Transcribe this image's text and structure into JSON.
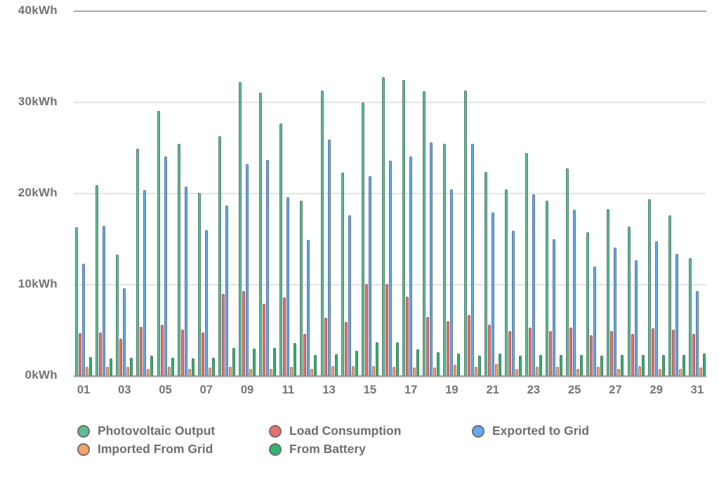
{
  "chart_data": {
    "type": "bar",
    "title": "",
    "unit": "kWh",
    "grid": "horizontal",
    "legend_position": "bottom",
    "ylim": [
      0,
      40
    ],
    "y_tick_labels": [
      "0kWh",
      "10kWh",
      "20kWh",
      "30kWh",
      "40kWh"
    ],
    "x_tick_labels": [
      "01",
      "03",
      "05",
      "07",
      "09",
      "11",
      "13",
      "15",
      "17",
      "19",
      "21",
      "23",
      "25",
      "27",
      "29",
      "31"
    ],
    "categories": [
      "01",
      "02",
      "03",
      "04",
      "05",
      "06",
      "07",
      "08",
      "09",
      "10",
      "11",
      "12",
      "13",
      "14",
      "15",
      "16",
      "17",
      "18",
      "19",
      "20",
      "21",
      "22",
      "23",
      "24",
      "25",
      "26",
      "27",
      "28",
      "29",
      "30",
      "31"
    ],
    "series": [
      {
        "name": "Photovoltaic Output",
        "color": "#5cbd95",
        "values": [
          16.3,
          20.9,
          13.3,
          24.9,
          29.1,
          25.5,
          20.1,
          26.3,
          32.2,
          31.1,
          27.7,
          19.2,
          31.3,
          22.3,
          30.0,
          32.8,
          32.5,
          31.2,
          25.5,
          31.3,
          22.4,
          20.5,
          24.5,
          19.2,
          22.8,
          15.8,
          18.3,
          16.4,
          19.4,
          17.6,
          12.9
        ]
      },
      {
        "name": "Load Consumption",
        "color": "#ea6f6f",
        "values": [
          4.7,
          4.8,
          4.1,
          5.4,
          5.6,
          5.1,
          4.8,
          9.0,
          9.3,
          7.9,
          8.6,
          4.6,
          6.4,
          5.9,
          10.1,
          10.1,
          8.7,
          6.5,
          6.0,
          6.7,
          5.6,
          4.9,
          5.3,
          4.9,
          5.3,
          4.5,
          4.9,
          4.6,
          5.2,
          5.1,
          4.6
        ]
      },
      {
        "name": "Exported to Grid",
        "color": "#63a8f1",
        "values": [
          12.3,
          16.5,
          9.6,
          20.4,
          24.1,
          20.8,
          16.0,
          18.7,
          23.2,
          23.7,
          19.6,
          14.9,
          25.9,
          17.6,
          21.9,
          23.6,
          24.1,
          25.6,
          20.5,
          25.5,
          17.9,
          15.9,
          19.9,
          15.0,
          18.2,
          12.0,
          14.1,
          12.7,
          14.8,
          13.4,
          9.3
        ]
      },
      {
        "name": "Imported From Grid",
        "color": "#f8a268",
        "values": [
          1.0,
          1.0,
          1.0,
          0.8,
          1.0,
          0.8,
          0.9,
          1.0,
          0.8,
          0.8,
          1.0,
          0.8,
          1.1,
          1.1,
          1.1,
          1.0,
          0.9,
          0.9,
          1.2,
          1.0,
          1.3,
          0.8,
          1.0,
          1.0,
          0.8,
          1.0,
          0.8,
          1.1,
          0.8,
          0.8,
          0.9
        ]
      },
      {
        "name": "From Battery",
        "color": "#2fb46f",
        "values": [
          2.1,
          1.9,
          2.0,
          2.2,
          2.0,
          1.9,
          2.0,
          3.1,
          3.0,
          3.1,
          3.6,
          2.3,
          2.4,
          2.8,
          3.7,
          3.7,
          2.9,
          2.6,
          2.5,
          2.2,
          2.5,
          2.2,
          2.3,
          2.3,
          2.3,
          2.2,
          2.3,
          2.3,
          2.3,
          2.3,
          2.5
        ]
      }
    ]
  },
  "legend": {
    "items": [
      {
        "label": "Photovoltaic Output",
        "color": "#5cbd95"
      },
      {
        "label": "Load Consumption",
        "color": "#ea6f6f"
      },
      {
        "label": "Exported to Grid",
        "color": "#63a8f1"
      },
      {
        "label": "Imported From Grid",
        "color": "#f8a268"
      },
      {
        "label": "From Battery",
        "color": "#2fb46f"
      }
    ]
  }
}
